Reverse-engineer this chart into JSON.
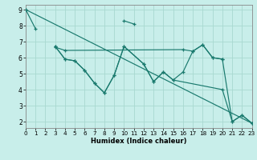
{
  "xlabel": "Humidex (Indice chaleur)",
  "bg_color": "#c8eeea",
  "grid_color": "#a8d8d0",
  "line_color": "#1a7a6e",
  "xlim": [
    0,
    23
  ],
  "ylim": [
    1.6,
    9.3
  ],
  "xticks": [
    0,
    1,
    2,
    3,
    4,
    5,
    6,
    7,
    8,
    9,
    10,
    11,
    12,
    13,
    14,
    15,
    16,
    17,
    18,
    19,
    20,
    21,
    22,
    23
  ],
  "yticks": [
    2,
    3,
    4,
    5,
    6,
    7,
    8,
    9
  ],
  "segments": [
    {
      "x": [
        0,
        1
      ],
      "y": [
        9.0,
        7.8
      ]
    },
    {
      "x": [
        10,
        11
      ],
      "y": [
        8.3,
        8.1
      ]
    },
    {
      "x": [
        3,
        4,
        5,
        6,
        7,
        8,
        9,
        10,
        12,
        13,
        14,
        15,
        16,
        17,
        18,
        19,
        20,
        21,
        22,
        23
      ],
      "y": [
        6.7,
        5.9,
        5.8,
        5.2,
        4.4,
        3.8,
        4.9,
        6.7,
        5.6,
        4.5,
        5.1,
        4.6,
        5.1,
        6.4,
        6.8,
        6.0,
        5.9,
        2.0,
        2.4,
        1.9
      ]
    },
    {
      "x": [
        3,
        4,
        16,
        17,
        18,
        19,
        20
      ],
      "y": [
        6.65,
        6.45,
        6.5,
        6.4,
        6.8,
        6.0,
        5.9
      ]
    },
    {
      "x": [
        0,
        23
      ],
      "y": [
        9.0,
        1.9
      ]
    },
    {
      "x": [
        3,
        4,
        5,
        6,
        7,
        8,
        9,
        10,
        12,
        13,
        14,
        15,
        20,
        21,
        22,
        23
      ],
      "y": [
        6.7,
        5.9,
        5.8,
        5.2,
        4.4,
        3.8,
        4.9,
        6.7,
        5.6,
        4.5,
        5.1,
        4.6,
        4.0,
        2.0,
        2.4,
        1.9
      ]
    }
  ]
}
